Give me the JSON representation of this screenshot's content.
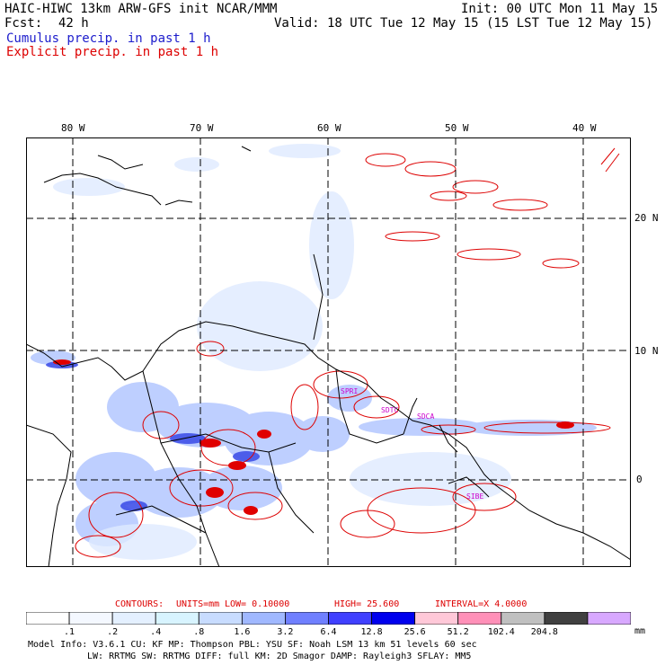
{
  "header": {
    "title": "HAIC-HIWC 13km ARW-GFS init   NCAR/MMM",
    "init": "Init: 00 UTC Mon 11 May 15",
    "fcst_label": "Fcst:",
    "fcst_value": "42 h",
    "valid": "Valid: 18 UTC Tue 12 May 15 (15 LST Tue 12 May 15)",
    "cumulus_label": "Cumulus precip. in past 1 h",
    "explicit_label": "Explicit precip. in past 1 h"
  },
  "map": {
    "lon_labels": [
      "80 W",
      "70 W",
      "60 W",
      "50 W",
      "40 W"
    ],
    "lat_labels": [
      "20 N",
      "10 N",
      "0"
    ],
    "stations": [
      "SPRI",
      "SDTC",
      "SDCA",
      "SIBE"
    ],
    "colors": {
      "cumulus": "#1c1ccc",
      "explicit": "#dd0000",
      "station": "#cc00cc",
      "grid": "#000000"
    }
  },
  "contours": {
    "contours_label": "CONTOURS:",
    "units": "UNITS=mm",
    "low": "LOW=  0.10000",
    "high": "HIGH=  25.600",
    "interval": "INTERVAL=X  4.0000"
  },
  "colorbar": {
    "ticks": [
      ".1",
      ".2",
      ".4",
      ".8",
      "1.6",
      "3.2",
      "6.4",
      "12.8",
      "25.6",
      "51.2",
      "102.4",
      "204.8"
    ],
    "unit": "mm",
    "colors": [
      "#ffffff",
      "#f4f8ff",
      "#e4f0ff",
      "#d8f4ff",
      "#c8dcff",
      "#a0b8ff",
      "#7080ff",
      "#4040ff",
      "#0000ee",
      "#ffc8d8",
      "#ff90b8",
      "#c0c0c0",
      "#404040",
      "#d8a8ff"
    ]
  },
  "footer": {
    "line1": "Model Info: V3.6.1    CU: KF      MP: Thompson    PBL: YSU      SF: Noah LSM     13 km    51 levels   60 sec",
    "line2": "LW: RRTMG    SW: RRTMG   DIFF: full    KM: 2D Smagor DAMP: Rayleigh3  SFLAY: MM5"
  }
}
